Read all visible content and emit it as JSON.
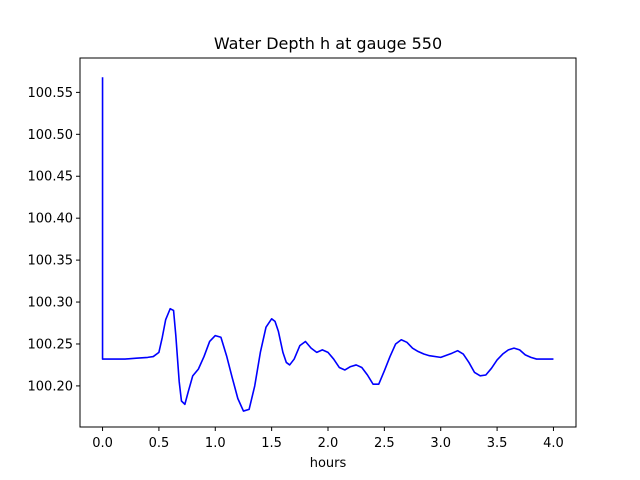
{
  "chart_data": {
    "type": "line",
    "title": "Water Depth h at gauge 550",
    "xlabel": "hours",
    "ylabel": "",
    "xlim": [
      -0.2,
      4.2
    ],
    "ylim": [
      100.151,
      100.591
    ],
    "xticks": [
      0.0,
      0.5,
      1.0,
      1.5,
      2.0,
      2.5,
      3.0,
      3.5,
      4.0
    ],
    "xtick_labels": [
      "0.0",
      "0.5",
      "1.0",
      "1.5",
      "2.0",
      "2.5",
      "3.0",
      "3.5",
      "4.0"
    ],
    "yticks": [
      100.2,
      100.25,
      100.3,
      100.35,
      100.4,
      100.45,
      100.5,
      100.55
    ],
    "ytick_labels": [
      "100.20",
      "100.25",
      "100.30",
      "100.35",
      "100.40",
      "100.45",
      "100.50",
      "100.55"
    ],
    "grid": false,
    "legend": "none",
    "series": [
      {
        "color": "#0000ff",
        "x": [
          0.0,
          0.0,
          0.003,
          0.1,
          0.2,
          0.3,
          0.4,
          0.45,
          0.5,
          0.53,
          0.56,
          0.6,
          0.63,
          0.65,
          0.68,
          0.7,
          0.73,
          0.76,
          0.8,
          0.85,
          0.9,
          0.95,
          1.0,
          1.05,
          1.1,
          1.15,
          1.2,
          1.25,
          1.3,
          1.35,
          1.4,
          1.45,
          1.5,
          1.53,
          1.56,
          1.6,
          1.63,
          1.66,
          1.7,
          1.75,
          1.8,
          1.85,
          1.9,
          1.95,
          2.0,
          2.05,
          2.1,
          2.15,
          2.2,
          2.25,
          2.3,
          2.35,
          2.4,
          2.45,
          2.5,
          2.55,
          2.6,
          2.65,
          2.7,
          2.75,
          2.8,
          2.85,
          2.9,
          3.0,
          3.1,
          3.15,
          3.2,
          3.25,
          3.3,
          3.35,
          3.4,
          3.45,
          3.5,
          3.55,
          3.6,
          3.65,
          3.7,
          3.75,
          3.8,
          3.85,
          3.9,
          3.95,
          4.0
        ],
        "y": [
          100.568,
          100.232,
          100.232,
          100.232,
          100.232,
          100.233,
          100.234,
          100.235,
          100.24,
          100.258,
          100.279,
          100.292,
          100.29,
          100.26,
          100.205,
          100.182,
          100.178,
          100.193,
          100.212,
          100.22,
          100.235,
          100.253,
          100.26,
          100.258,
          100.236,
          100.21,
          100.185,
          100.17,
          100.172,
          100.2,
          100.24,
          100.27,
          100.28,
          100.277,
          100.265,
          100.24,
          100.228,
          100.225,
          100.232,
          100.248,
          100.253,
          100.245,
          100.24,
          100.243,
          100.24,
          100.232,
          100.222,
          100.219,
          100.223,
          100.225,
          100.222,
          100.213,
          100.202,
          100.202,
          100.218,
          100.235,
          100.25,
          100.255,
          100.252,
          100.245,
          100.241,
          100.238,
          100.236,
          100.234,
          100.239,
          100.242,
          100.238,
          100.228,
          100.216,
          100.212,
          100.213,
          100.221,
          100.231,
          100.238,
          100.243,
          100.245,
          100.243,
          100.237,
          100.234,
          100.232,
          100.232,
          100.232,
          100.232
        ]
      }
    ]
  }
}
